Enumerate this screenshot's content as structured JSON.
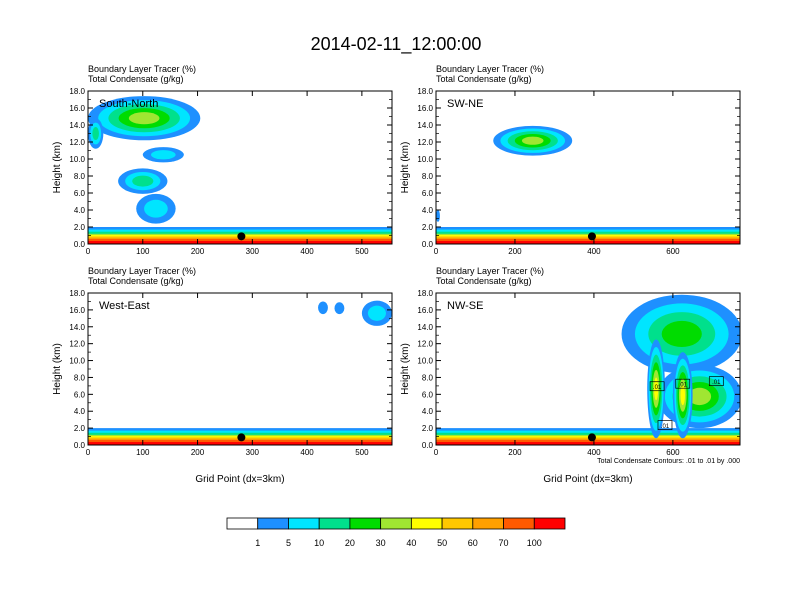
{
  "title": "2014-02-11_12:00:00",
  "panel_header": {
    "line1": "Boundary Layer Tracer   (%)",
    "line2": "Total Condensate   (g/kg)"
  },
  "ylabel": "Height (km)",
  "xlabel": "Grid Point (dx=3km)",
  "contour_note": "Total Condensate Contours: .01 to .01 by .000",
  "y_ticks": [
    "0.0",
    "2.0",
    "4.0",
    "6.0",
    "8.0",
    "10.0",
    "12.0",
    "14.0",
    "16.0",
    "18.0"
  ],
  "colorbar": {
    "colors": [
      "#ffffff",
      "#1e90ff",
      "#00e5ff",
      "#00e08c",
      "#00dc00",
      "#a0e632",
      "#ffff00",
      "#ffc800",
      "#ffa000",
      "#ff5a00",
      "#ff0000"
    ],
    "labels": [
      "1",
      "5",
      "10",
      "20",
      "30",
      "40",
      "50",
      "60",
      "70",
      "100"
    ]
  },
  "chart_data": [
    {
      "type": "heatmap",
      "name": "South-North",
      "xlim": [
        0,
        555
      ],
      "ylim": [
        0,
        18
      ],
      "x_ticks": [
        0,
        100,
        200,
        300,
        400,
        500
      ],
      "marker": {
        "x": 280,
        "y": 0.9
      },
      "contour_labels": []
    },
    {
      "type": "heatmap",
      "name": "SW-NE",
      "xlim": [
        0,
        770
      ],
      "ylim": [
        0,
        18
      ],
      "x_ticks": [
        0,
        200,
        400,
        600
      ],
      "marker": {
        "x": 395,
        "y": 0.9
      },
      "contour_labels": []
    },
    {
      "type": "heatmap",
      "name": "West-East",
      "xlim": [
        0,
        555
      ],
      "ylim": [
        0,
        18
      ],
      "x_ticks": [
        0,
        100,
        200,
        300,
        400,
        500
      ],
      "marker": {
        "x": 280,
        "y": 0.9
      },
      "contour_labels": []
    },
    {
      "type": "heatmap",
      "name": "NW-SE",
      "xlim": [
        0,
        770
      ],
      "ylim": [
        0,
        18
      ],
      "x_ticks": [
        0,
        200,
        400,
        600
      ],
      "marker": {
        "x": 395,
        "y": 0.9
      },
      "contour_labels": [
        {
          "text": ".01",
          "x": 560,
          "y": 6.9
        },
        {
          "text": ".01",
          "x": 625,
          "y": 7.2
        },
        {
          "text": ".01",
          "x": 710,
          "y": 7.5
        },
        {
          "text": ".01",
          "x": 580,
          "y": 2.3
        }
      ]
    }
  ]
}
